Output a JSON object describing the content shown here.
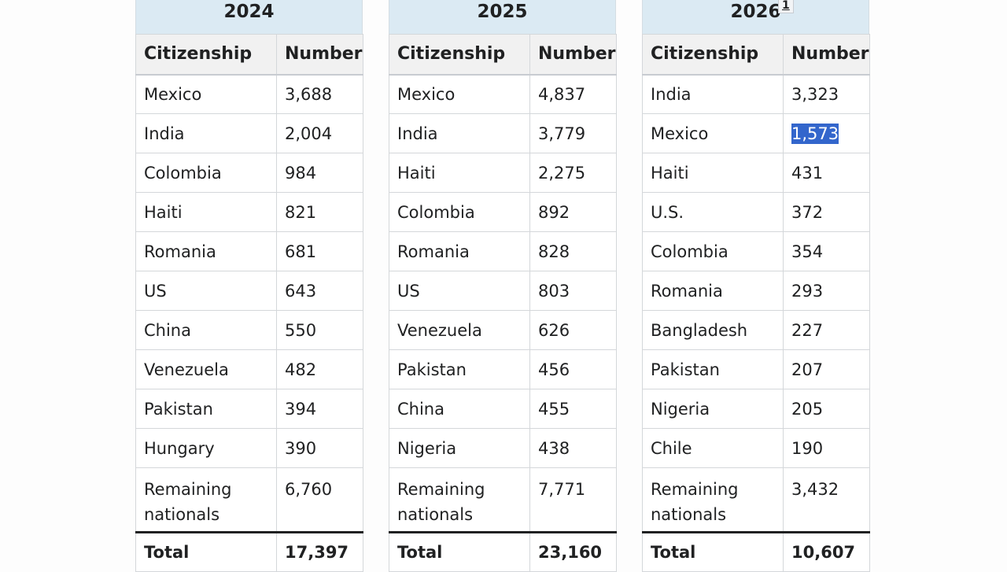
{
  "headers": {
    "col1": "Citizenship",
    "col2": "Number"
  },
  "total_label": "Total",
  "highlight_color": "#3366cc",
  "tables": [
    {
      "year": "2024",
      "rows": [
        {
          "country": "Mexico",
          "number": "3,688"
        },
        {
          "country": "India",
          "number": "2,004"
        },
        {
          "country": "Colombia",
          "number": "984"
        },
        {
          "country": "Haiti",
          "number": "821"
        },
        {
          "country": "Romania",
          "number": "681"
        },
        {
          "country": "US",
          "number": "643"
        },
        {
          "country": "China",
          "number": "550"
        },
        {
          "country": "Venezuela",
          "number": "482"
        },
        {
          "country": "Pakistan",
          "number": "394"
        },
        {
          "country": "Hungary",
          "number": "390"
        },
        {
          "country": "Remaining nationals",
          "number": "6,760"
        }
      ],
      "total": "17,397"
    },
    {
      "year": "2025",
      "rows": [
        {
          "country": "Mexico",
          "number": "4,837"
        },
        {
          "country": "India",
          "number": "3,779"
        },
        {
          "country": "Haiti",
          "number": "2,275"
        },
        {
          "country": "Colombia",
          "number": "892"
        },
        {
          "country": "Romania",
          "number": "828"
        },
        {
          "country": "US",
          "number": "803"
        },
        {
          "country": "Venezuela",
          "number": "626"
        },
        {
          "country": "Pakistan",
          "number": "456"
        },
        {
          "country": "China",
          "number": "455"
        },
        {
          "country": "Nigeria",
          "number": "438"
        },
        {
          "country": "Remaining nationals",
          "number": "7,771"
        }
      ],
      "total": "23,160"
    },
    {
      "year": "2026",
      "footnote": "1",
      "rows": [
        {
          "country": "India",
          "number": "3,323"
        },
        {
          "country": "Mexico",
          "number": "1,573"
        },
        {
          "country": "Haiti",
          "number": "431"
        },
        {
          "country": "U.S.",
          "number": "372"
        },
        {
          "country": "Colombia",
          "number": "354"
        },
        {
          "country": "Romania",
          "number": "293"
        },
        {
          "country": "Bangladesh",
          "number": "227"
        },
        {
          "country": "Pakistan",
          "number": "207"
        },
        {
          "country": "Nigeria",
          "number": "205"
        },
        {
          "country": "Chile",
          "number": "190"
        },
        {
          "country": "Remaining nationals",
          "number": "3,432"
        }
      ],
      "total": "10,607"
    }
  ]
}
